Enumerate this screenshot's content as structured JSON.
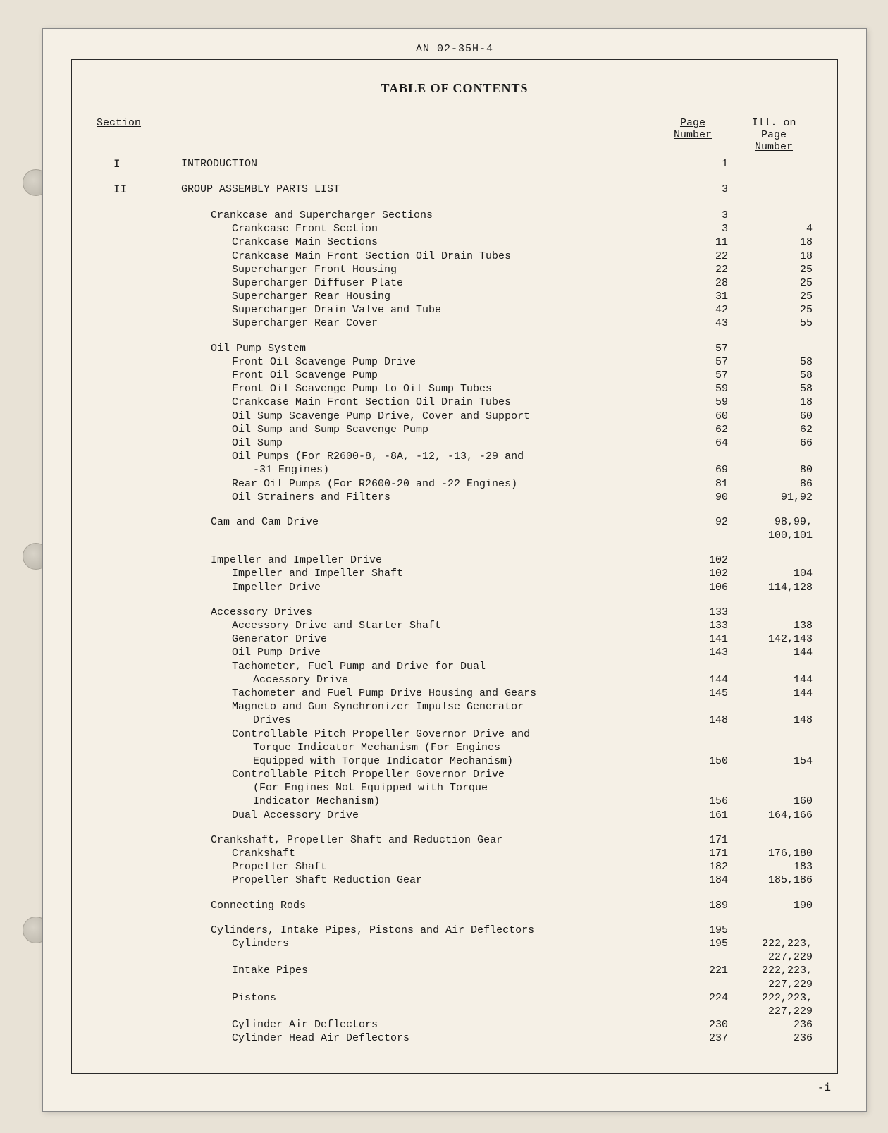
{
  "doc_number": "AN 02-35H-4",
  "page_title": "TABLE OF CONTENTS",
  "headers": {
    "section": "Section",
    "page": "Page\nNumber",
    "ill": "Ill. on\nPage\nNumber"
  },
  "sections": [
    {
      "section": "I",
      "desc": "INTRODUCTION",
      "page": "1",
      "ill": "",
      "indent": 0
    },
    {
      "spacer": true
    },
    {
      "section": "II",
      "desc": "GROUP ASSEMBLY PARTS LIST",
      "page": "3",
      "ill": "",
      "indent": 0
    },
    {
      "spacer": true
    },
    {
      "desc": "Crankcase and Supercharger Sections",
      "page": "3",
      "ill": "",
      "indent": 1
    },
    {
      "desc": "Crankcase Front Section",
      "page": "3",
      "ill": "4",
      "indent": 2
    },
    {
      "desc": "Crankcase Main Sections",
      "page": "11",
      "ill": "18",
      "indent": 2
    },
    {
      "desc": "Crankcase Main Front Section Oil Drain Tubes",
      "page": "22",
      "ill": "18",
      "indent": 2
    },
    {
      "desc": "Supercharger Front Housing",
      "page": "22",
      "ill": "25",
      "indent": 2
    },
    {
      "desc": "Supercharger Diffuser Plate",
      "page": "28",
      "ill": "25",
      "indent": 2
    },
    {
      "desc": "Supercharger Rear Housing",
      "page": "31",
      "ill": "25",
      "indent": 2
    },
    {
      "desc": "Supercharger Drain Valve and Tube",
      "page": "42",
      "ill": "25",
      "indent": 2
    },
    {
      "desc": "Supercharger Rear Cover",
      "page": "43",
      "ill": "55",
      "indent": 2
    },
    {
      "spacer": true
    },
    {
      "desc": "Oil Pump System",
      "page": "57",
      "ill": "",
      "indent": 1
    },
    {
      "desc": "Front Oil Scavenge Pump Drive",
      "page": "57",
      "ill": "58",
      "indent": 2
    },
    {
      "desc": "Front Oil Scavenge Pump",
      "page": "57",
      "ill": "58",
      "indent": 2
    },
    {
      "desc": "Front Oil Scavenge Pump to Oil Sump Tubes",
      "page": "59",
      "ill": "58",
      "indent": 2
    },
    {
      "desc": "Crankcase Main Front Section Oil Drain Tubes",
      "page": "59",
      "ill": "18",
      "indent": 2
    },
    {
      "desc": "Oil Sump Scavenge Pump Drive, Cover and Support",
      "page": "60",
      "ill": "60",
      "indent": 2
    },
    {
      "desc": "Oil Sump and Sump Scavenge Pump",
      "page": "62",
      "ill": "62",
      "indent": 2
    },
    {
      "desc": "Oil Sump",
      "page": "64",
      "ill": "66",
      "indent": 2
    },
    {
      "desc": "Oil Pumps (For R2600-8, -8A, -12, -13, -29 and",
      "page": "",
      "ill": "",
      "indent": 2
    },
    {
      "desc": "-31 Engines)",
      "page": "69",
      "ill": "80",
      "indent": 3
    },
    {
      "desc": "Rear Oil Pumps (For R2600-20 and -22 Engines)",
      "page": "81",
      "ill": "86",
      "indent": 2
    },
    {
      "desc": "Oil Strainers and Filters",
      "page": "90",
      "ill": "91,92",
      "indent": 2
    },
    {
      "spacer": true
    },
    {
      "desc": "Cam and Cam Drive",
      "page": "92",
      "ill": "98,99,",
      "indent": 1
    },
    {
      "desc": "",
      "page": "",
      "ill": "100,101",
      "indent": 1
    },
    {
      "spacer": true
    },
    {
      "desc": "Impeller and Impeller Drive",
      "page": "102",
      "ill": "",
      "indent": 1
    },
    {
      "desc": "Impeller and Impeller Shaft",
      "page": "102",
      "ill": "104",
      "indent": 2
    },
    {
      "desc": "Impeller Drive",
      "page": "106",
      "ill": "114,128",
      "indent": 2
    },
    {
      "spacer": true
    },
    {
      "desc": "Accessory Drives",
      "page": "133",
      "ill": "",
      "indent": 1
    },
    {
      "desc": "Accessory Drive and Starter Shaft",
      "page": "133",
      "ill": "138",
      "indent": 2
    },
    {
      "desc": "Generator Drive",
      "page": "141",
      "ill": "142,143",
      "indent": 2
    },
    {
      "desc": "Oil Pump Drive",
      "page": "143",
      "ill": "144",
      "indent": 2
    },
    {
      "desc": "Tachometer, Fuel Pump and Drive for Dual",
      "page": "",
      "ill": "",
      "indent": 2
    },
    {
      "desc": "Accessory Drive",
      "page": "144",
      "ill": "144",
      "indent": 3
    },
    {
      "desc": "Tachometer and Fuel Pump Drive Housing and Gears",
      "page": "145",
      "ill": "144",
      "indent": 2
    },
    {
      "desc": "Magneto and Gun Synchronizer Impulse Generator",
      "page": "",
      "ill": "",
      "indent": 2
    },
    {
      "desc": "Drives",
      "page": "148",
      "ill": "148",
      "indent": 3
    },
    {
      "desc": "Controllable Pitch Propeller Governor Drive and",
      "page": "",
      "ill": "",
      "indent": 2
    },
    {
      "desc": "Torque Indicator Mechanism (For Engines",
      "page": "",
      "ill": "",
      "indent": 3
    },
    {
      "desc": "Equipped with Torque Indicator Mechanism)",
      "page": "150",
      "ill": "154",
      "indent": 3
    },
    {
      "desc": "Controllable Pitch Propeller Governor Drive",
      "page": "",
      "ill": "",
      "indent": 2
    },
    {
      "desc": "(For Engines Not Equipped with Torque",
      "page": "",
      "ill": "",
      "indent": 3
    },
    {
      "desc": "Indicator Mechanism)",
      "page": "156",
      "ill": "160",
      "indent": 3
    },
    {
      "desc": "Dual Accessory Drive",
      "page": "161",
      "ill": "164,166",
      "indent": 2
    },
    {
      "spacer": true
    },
    {
      "desc": "Crankshaft, Propeller Shaft and Reduction Gear",
      "page": "171",
      "ill": "",
      "indent": 1
    },
    {
      "desc": "Crankshaft",
      "page": "171",
      "ill": "176,180",
      "indent": 2
    },
    {
      "desc": "Propeller Shaft",
      "page": "182",
      "ill": "183",
      "indent": 2
    },
    {
      "desc": "Propeller Shaft Reduction Gear",
      "page": "184",
      "ill": "185,186",
      "indent": 2
    },
    {
      "spacer": true
    },
    {
      "desc": "Connecting Rods",
      "page": "189",
      "ill": "190",
      "indent": 1
    },
    {
      "spacer": true
    },
    {
      "desc": "Cylinders, Intake Pipes, Pistons and Air Deflectors",
      "page": "195",
      "ill": "",
      "indent": 1
    },
    {
      "desc": "Cylinders",
      "page": "195",
      "ill": "222,223,",
      "indent": 2
    },
    {
      "desc": "",
      "page": "",
      "ill": "227,229",
      "indent": 2
    },
    {
      "desc": "Intake Pipes",
      "page": "221",
      "ill": "222,223,",
      "indent": 2
    },
    {
      "desc": "",
      "page": "",
      "ill": "227,229",
      "indent": 2
    },
    {
      "desc": "Pistons",
      "page": "224",
      "ill": "222,223,",
      "indent": 2
    },
    {
      "desc": "",
      "page": "",
      "ill": "227,229",
      "indent": 2
    },
    {
      "desc": "Cylinder Air Deflectors",
      "page": "230",
      "ill": "236",
      "indent": 2
    },
    {
      "desc": "Cylinder Head Air Deflectors",
      "page": "237",
      "ill": "236",
      "indent": 2
    }
  ],
  "page_number": "-i",
  "colors": {
    "body_bg": "#e8e2d6",
    "page_bg": "#f5f0e6",
    "text": "#1a1a1a",
    "border": "#2a2a2a"
  }
}
